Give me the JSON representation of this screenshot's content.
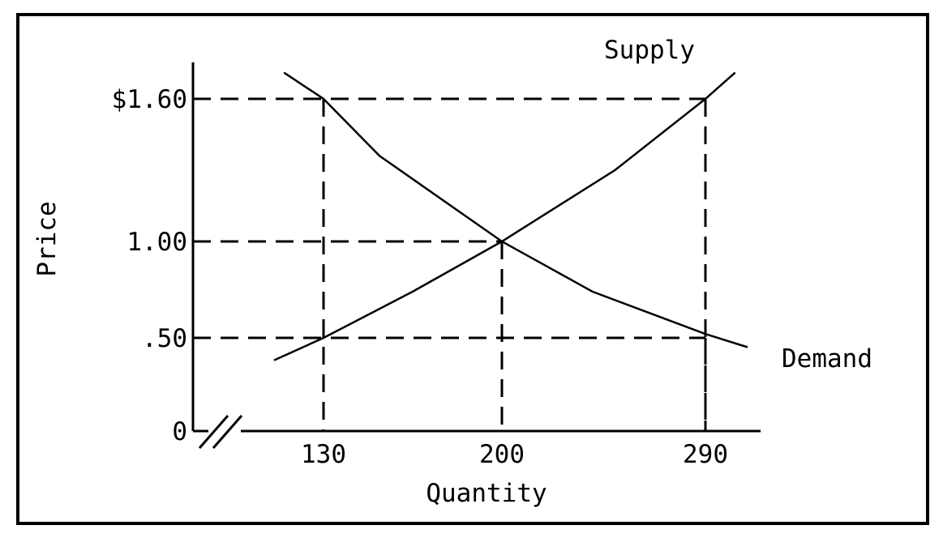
{
  "chart_data": {
    "type": "line",
    "xlabel": "Quantity",
    "ylabel": "Price",
    "x_ticks": [
      {
        "value": 130,
        "label": "130"
      },
      {
        "value": 200,
        "label": "200"
      },
      {
        "value": 290,
        "label": "290"
      }
    ],
    "y_ticks": [
      {
        "value": 0,
        "label": "0"
      },
      {
        "value": 0.5,
        "label": ".50"
      },
      {
        "value": 1.0,
        "label": "1.00"
      },
      {
        "value": 1.6,
        "label": "$1.60"
      }
    ],
    "axis_break": true,
    "grid": false,
    "series": [
      {
        "name": "Supply",
        "points": [
          {
            "x": 115,
            "y": 0.38
          },
          {
            "x": 130,
            "y": 0.5
          },
          {
            "x": 165,
            "y": 0.74
          },
          {
            "x": 200,
            "y": 1.0
          },
          {
            "x": 250,
            "y": 1.3
          },
          {
            "x": 290,
            "y": 1.6
          },
          {
            "x": 302,
            "y": 1.71
          }
        ]
      },
      {
        "name": "Demand",
        "points": [
          {
            "x": 118,
            "y": 1.71
          },
          {
            "x": 130,
            "y": 1.6
          },
          {
            "x": 152,
            "y": 1.36
          },
          {
            "x": 200,
            "y": 1.0
          },
          {
            "x": 240,
            "y": 0.74
          },
          {
            "x": 290,
            "y": 0.52
          },
          {
            "x": 307,
            "y": 0.45
          }
        ]
      }
    ],
    "reference_lines": [
      {
        "x": 130,
        "y": 1.6
      },
      {
        "x": 200,
        "y": 1.0
      },
      {
        "x": 290,
        "y": 0.5
      },
      {
        "x": 290,
        "y": 1.6
      }
    ]
  }
}
